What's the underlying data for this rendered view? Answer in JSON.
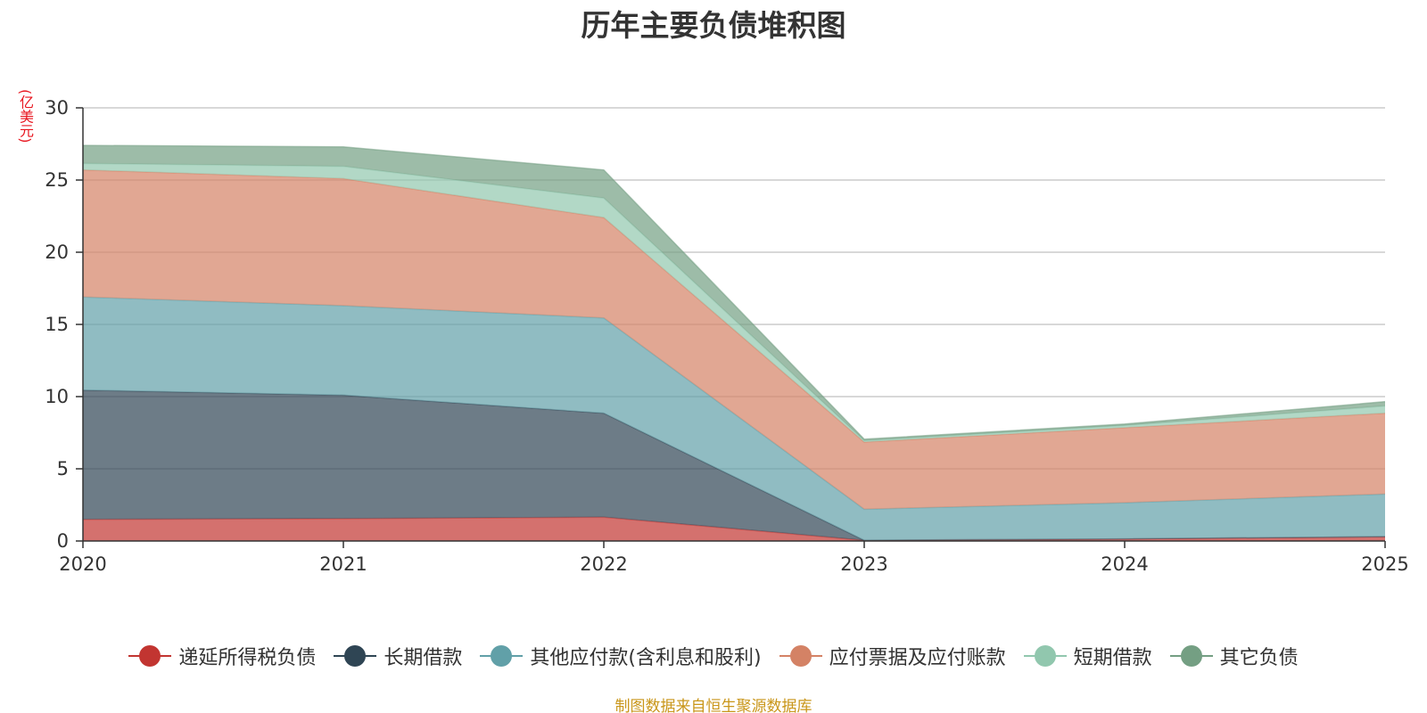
{
  "chart_data": {
    "type": "area",
    "stacked": true,
    "title": "历年主要负债堆积图",
    "ylabel": "(亿美元)",
    "xlabel": "",
    "categories": [
      "2020",
      "2021",
      "2022",
      "2023",
      "2024",
      "2025"
    ],
    "ylim": [
      0,
      30
    ],
    "yticks": [
      "0",
      "5",
      "10",
      "15",
      "20",
      "25",
      "30"
    ],
    "grid": true,
    "legend_position": "bottom",
    "series": [
      {
        "name": "递延所得税负债",
        "color": "#c23531",
        "values": [
          1.5,
          1.55,
          1.65,
          0.05,
          0.15,
          0.3
        ]
      },
      {
        "name": "长期借款",
        "color": "#2f4554",
        "values": [
          8.95,
          8.55,
          7.2,
          0.0,
          0.0,
          0.0
        ]
      },
      {
        "name": "其他应付款(含利息和股利)",
        "color": "#61a0a8",
        "values": [
          6.45,
          6.2,
          6.6,
          2.15,
          2.5,
          2.95
        ]
      },
      {
        "name": "应付票据及应付账款",
        "color": "#d48265",
        "values": [
          8.8,
          8.8,
          6.95,
          4.65,
          5.2,
          5.6
        ]
      },
      {
        "name": "短期借款",
        "color": "#91c7ae",
        "values": [
          0.45,
          0.85,
          1.35,
          0.1,
          0.15,
          0.5
        ]
      },
      {
        "name": "其它负债",
        "color": "#749f83",
        "values": [
          1.25,
          1.35,
          1.95,
          0.1,
          0.1,
          0.3
        ]
      }
    ],
    "source_note": "制图数据来自恒生聚源数据库"
  }
}
